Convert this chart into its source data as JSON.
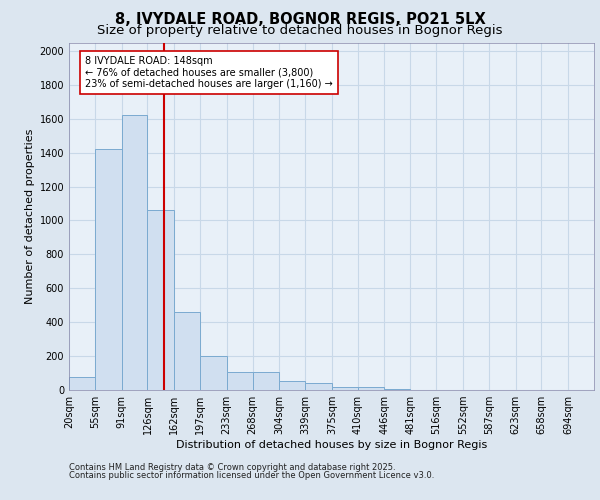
{
  "title_line1": "8, IVYDALE ROAD, BOGNOR REGIS, PO21 5LX",
  "title_line2": "Size of property relative to detached houses in Bognor Regis",
  "xlabel": "Distribution of detached houses by size in Bognor Regis",
  "ylabel": "Number of detached properties",
  "footnote1": "Contains HM Land Registry data © Crown copyright and database right 2025.",
  "footnote2": "Contains public sector information licensed under the Open Government Licence v3.0.",
  "annotation_line1": "8 IVYDALE ROAD: 148sqm",
  "annotation_line2": "← 76% of detached houses are smaller (3,800)",
  "annotation_line3": "23% of semi-detached houses are larger (1,160) →",
  "bar_edges": [
    20,
    55,
    91,
    126,
    162,
    197,
    233,
    268,
    304,
    339,
    375,
    410,
    446,
    481,
    516,
    552,
    587,
    623,
    658,
    694,
    729
  ],
  "bar_heights": [
    75,
    1420,
    1620,
    1060,
    460,
    200,
    105,
    105,
    55,
    40,
    20,
    20,
    8,
    0,
    0,
    0,
    0,
    0,
    0,
    0
  ],
  "bar_color": "#d0dff0",
  "bar_edgecolor": "#7aaad0",
  "vline_color": "#cc0000",
  "vline_x": 148,
  "annotation_box_edgecolor": "#cc0000",
  "annotation_box_facecolor": "#ffffff",
  "ylim": [
    0,
    2050
  ],
  "yticks": [
    0,
    200,
    400,
    600,
    800,
    1000,
    1200,
    1400,
    1600,
    1800,
    2000
  ],
  "bg_color": "#dce6f0",
  "plot_bg_color": "#e8f0f8",
  "grid_color": "#c8d8e8",
  "title_fontsize": 10.5,
  "subtitle_fontsize": 9.5,
  "axis_label_fontsize": 8,
  "tick_fontsize": 7,
  "annotation_fontsize": 7,
  "footnote_fontsize": 6
}
